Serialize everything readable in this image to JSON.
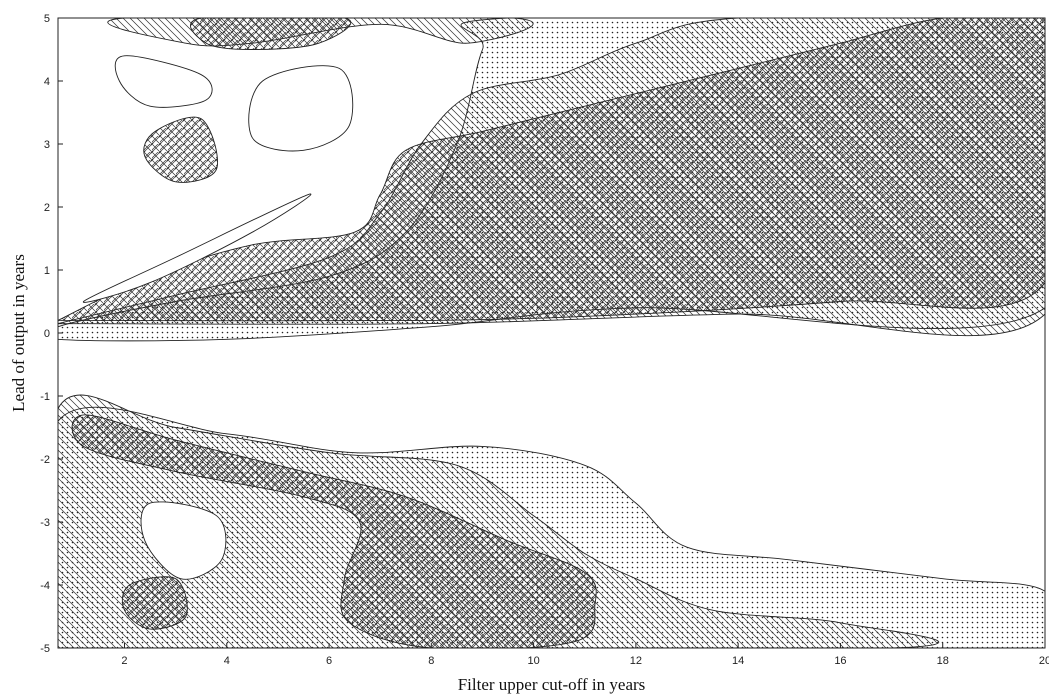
{
  "chart_data": {
    "type": "contour",
    "title": "",
    "xlabel": "Filter upper cut-off in years",
    "ylabel": "Lead of output in years",
    "xlim": [
      0.7,
      20
    ],
    "ylim": [
      -5,
      5
    ],
    "x_ticks": [
      "2",
      "4",
      "6",
      "8",
      "10",
      "12",
      "14",
      "16",
      "18",
      "20"
    ],
    "y_ticks": [
      "5",
      "4",
      "3",
      "2",
      "1",
      "0",
      "-1",
      "-2",
      "-3",
      "-4",
      "-5"
    ],
    "grid": false,
    "legend": "none",
    "fill_patterns": [
      "crosshatch",
      "diagonal-hatch",
      "dots",
      "blank"
    ],
    "regions": [
      {
        "name": "upper-dots-band",
        "pattern": "dots",
        "outline": [
          [
            0.7,
            0.1
          ],
          [
            3,
            0.5
          ],
          [
            6,
            0.9
          ],
          [
            7.5,
            1.6
          ],
          [
            8.5,
            3
          ],
          [
            9,
            4.5
          ],
          [
            9.5,
            5
          ],
          [
            20,
            5
          ],
          [
            20,
            0.4
          ],
          [
            12,
            0.4
          ],
          [
            8,
            0.1
          ],
          [
            4,
            -0.1
          ],
          [
            0.7,
            -0.1
          ]
        ]
      },
      {
        "name": "upper-hatch-band",
        "pattern": "diagonal-hatch",
        "outline": [
          [
            0.7,
            0.15
          ],
          [
            3,
            0.6
          ],
          [
            6,
            1.2
          ],
          [
            7,
            1.9
          ],
          [
            7.8,
            3
          ],
          [
            8.8,
            3.8
          ],
          [
            10.5,
            4.1
          ],
          [
            12,
            4.6
          ],
          [
            14,
            5
          ],
          [
            20,
            5
          ],
          [
            20,
            0.3
          ],
          [
            14,
            0.3
          ],
          [
            8,
            0.15
          ],
          [
            0.7,
            0.15
          ]
        ]
      },
      {
        "name": "upper-crosshatch-core",
        "pattern": "crosshatch",
        "outline": [
          [
            0.7,
            0.2
          ],
          [
            2.5,
            0.9
          ],
          [
            4.5,
            1.4
          ],
          [
            6.5,
            1.6
          ],
          [
            7,
            2.2
          ],
          [
            7.5,
            2.9
          ],
          [
            9,
            3.2
          ],
          [
            11,
            3.6
          ],
          [
            14,
            4.2
          ],
          [
            16,
            4.6
          ],
          [
            18,
            5
          ],
          [
            20,
            5
          ],
          [
            20,
            0.8
          ],
          [
            16,
            0.5
          ],
          [
            12,
            0.3
          ],
          [
            8,
            0.2
          ],
          [
            0.7,
            0.2
          ]
        ]
      },
      {
        "name": "upper-top-hatch",
        "pattern": "diagonal-hatch",
        "outline": [
          [
            2,
            5
          ],
          [
            3.2,
            4.6
          ],
          [
            4.5,
            4.6
          ],
          [
            7,
            4.9
          ],
          [
            8.7,
            4.6
          ],
          [
            9.6,
            5
          ]
        ]
      },
      {
        "name": "upper-top-crosshatch",
        "pattern": "crosshatch",
        "outline": [
          [
            3.5,
            5
          ],
          [
            3.6,
            4.6
          ],
          [
            4.5,
            4.5
          ],
          [
            5.8,
            4.6
          ],
          [
            6.3,
            5
          ]
        ]
      },
      {
        "name": "upper-mid-crosshatch",
        "pattern": "crosshatch",
        "outline": [
          [
            2.6,
            3.2
          ],
          [
            3.5,
            3.4
          ],
          [
            3.8,
            2.6
          ],
          [
            3,
            2.4
          ],
          [
            2.4,
            2.8
          ]
        ]
      },
      {
        "name": "upper-blank-pocket-1",
        "pattern": "blank",
        "outline": [
          [
            4.7,
            4
          ],
          [
            6.2,
            4.2
          ],
          [
            6.4,
            3.3
          ],
          [
            5.5,
            2.9
          ],
          [
            4.5,
            3.1
          ]
        ]
      },
      {
        "name": "upper-blank-pocket-2",
        "pattern": "blank",
        "outline": [
          [
            2,
            4.4
          ],
          [
            3.5,
            4.1
          ],
          [
            3.6,
            3.7
          ],
          [
            2.5,
            3.6
          ],
          [
            1.9,
            4
          ]
        ]
      },
      {
        "name": "upper-blank-finger",
        "pattern": "blank",
        "outline": [
          [
            1.2,
            0.5
          ],
          [
            3,
            1.2
          ],
          [
            5.6,
            2.2
          ],
          [
            4.5,
            1.6
          ],
          [
            2.5,
            0.8
          ]
        ]
      },
      {
        "name": "lower-dots-band",
        "pattern": "dots",
        "outline": [
          [
            0.7,
            -1.4
          ],
          [
            4,
            -1.6
          ],
          [
            6.5,
            -1.9
          ],
          [
            9,
            -1.8
          ],
          [
            11,
            -2.1
          ],
          [
            12,
            -2.7
          ],
          [
            13,
            -3.4
          ],
          [
            15,
            -3.6
          ],
          [
            18,
            -3.9
          ],
          [
            20,
            -4.1
          ],
          [
            20,
            -5
          ],
          [
            7.5,
            -5
          ],
          [
            3,
            -5
          ],
          [
            0.7,
            -5
          ]
        ]
      },
      {
        "name": "lower-hatch-band",
        "pattern": "diagonal-hatch",
        "outline": [
          [
            0.7,
            -1.2
          ],
          [
            3,
            -1.5
          ],
          [
            6,
            -1.9
          ],
          [
            8.5,
            -2.1
          ],
          [
            10,
            -2.9
          ],
          [
            11,
            -3.5
          ],
          [
            12,
            -3.9
          ],
          [
            13.5,
            -4.4
          ],
          [
            16,
            -4.6
          ],
          [
            17,
            -5
          ],
          [
            2,
            -5
          ],
          [
            0.7,
            -5
          ]
        ]
      },
      {
        "name": "lower-crosshatch-core",
        "pattern": "crosshatch",
        "outline": [
          [
            1.2,
            -1.3
          ],
          [
            3,
            -1.7
          ],
          [
            5.5,
            -2.2
          ],
          [
            7.5,
            -2.6
          ],
          [
            9.5,
            -3.3
          ],
          [
            11,
            -3.8
          ],
          [
            11.2,
            -4.3
          ],
          [
            10.8,
            -4.9
          ],
          [
            8,
            -5
          ],
          [
            6.4,
            -4.6
          ],
          [
            6.3,
            -3.9
          ],
          [
            6.6,
            -3
          ],
          [
            5.5,
            -2.6
          ],
          [
            3,
            -2.2
          ],
          [
            1.2,
            -1.8
          ]
        ]
      },
      {
        "name": "lower-blank-pocket",
        "pattern": "blank",
        "outline": [
          [
            2.5,
            -2.7
          ],
          [
            3.8,
            -2.9
          ],
          [
            3.9,
            -3.6
          ],
          [
            3.1,
            -3.9
          ],
          [
            2.4,
            -3.3
          ]
        ]
      },
      {
        "name": "lower-small-crosshatch",
        "pattern": "crosshatch",
        "outline": [
          [
            2.1,
            -4
          ],
          [
            3,
            -3.9
          ],
          [
            3.2,
            -4.5
          ],
          [
            2.5,
            -4.7
          ],
          [
            2,
            -4.4
          ]
        ]
      }
    ]
  }
}
